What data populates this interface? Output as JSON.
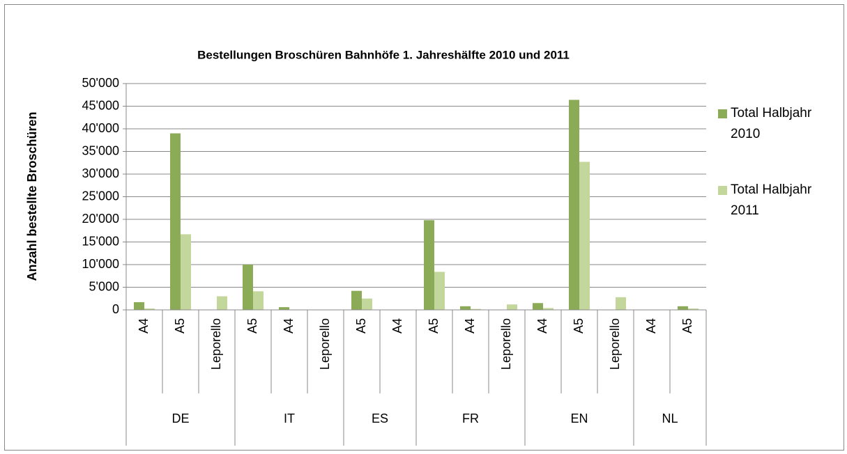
{
  "chart_data": {
    "type": "bar",
    "title": "Bestellungen Broschüren Bahnhöfe 1. Jahreshälfte 2010 und 2011",
    "y_label": "Anzahl bestellte Broschüren",
    "groups": [
      {
        "name": "DE",
        "categories": [
          "A4",
          "A5",
          "Leporello"
        ]
      },
      {
        "name": "IT",
        "categories": [
          "A5",
          "A4",
          "Leporello"
        ]
      },
      {
        "name": "ES",
        "categories": [
          "A5",
          "A4"
        ]
      },
      {
        "name": "FR",
        "categories": [
          "A5",
          "A4",
          "Leporello"
        ]
      },
      {
        "name": "EN",
        "categories": [
          "A4",
          "A5",
          "Leporello"
        ]
      },
      {
        "name": "NL",
        "categories": [
          "A4",
          "A5"
        ]
      }
    ],
    "series": [
      {
        "name": "Total Halbjahr 2010",
        "color": "#8bab56",
        "values": [
          1700,
          39000,
          0,
          10000,
          600,
          0,
          4200,
          0,
          19800,
          800,
          0,
          1500,
          46400,
          0,
          0,
          800
        ]
      },
      {
        "name": "Total Halbjahr 2011",
        "color": "#c3d69b",
        "values": [
          300,
          16700,
          3000,
          4100,
          0,
          0,
          2500,
          0,
          8400,
          200,
          1200,
          400,
          32700,
          2800,
          0,
          300
        ]
      }
    ],
    "ylim": [
      0,
      50000
    ],
    "yticks": [
      0,
      {
        "value": 5000,
        "label": "5'000"
      },
      {
        "value": 10000,
        "label": "10'000"
      },
      {
        "value": 15000,
        "label": "15'000"
      },
      {
        "value": 20000,
        "label": "20'000"
      },
      {
        "value": 25000,
        "label": "25'000"
      },
      {
        "value": 30000,
        "label": "30'000"
      },
      {
        "value": 35000,
        "label": "35'000"
      },
      {
        "value": 40000,
        "label": "40'000"
      },
      {
        "value": 45000,
        "label": "45'000"
      },
      {
        "value": 50000,
        "label": "50'000"
      }
    ],
    "grid": true,
    "legend": "right"
  }
}
